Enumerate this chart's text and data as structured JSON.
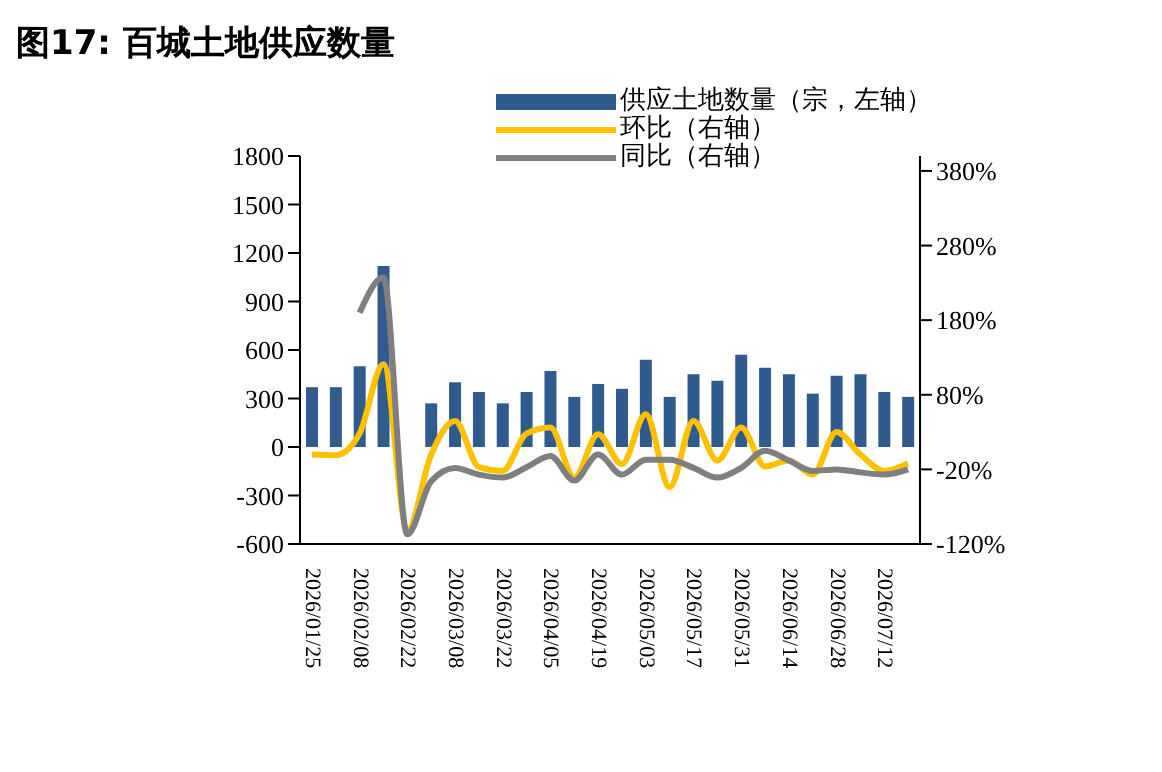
{
  "chart_data": {
    "type": "bar",
    "title": "图17: 百城土地供应数量",
    "categories": [
      "2026/01/25",
      null,
      "2026/02/08",
      null,
      "2026/02/22",
      null,
      "2026/03/08",
      null,
      "2026/03/22",
      null,
      "2026/04/05",
      null,
      "2026/04/19",
      null,
      "2026/05/03",
      null,
      "2026/05/17",
      null,
      "2026/05/31",
      null,
      "2026/06/14",
      null,
      "2026/06/28",
      null,
      "2026/07/12",
      null
    ],
    "series": [
      {
        "name": "供应土地数量（宗，左轴）",
        "color": "#2f5b8f",
        "values": [
          370,
          370,
          500,
          1120,
          null,
          270,
          400,
          340,
          270,
          340,
          470,
          310,
          390,
          360,
          540,
          310,
          450,
          410,
          570,
          490,
          450,
          330,
          440,
          450,
          340,
          310
        ]
      },
      {
        "name": "环比（右轴）",
        "type": "line",
        "axis": "y2",
        "color": "#ffc000",
        "values": [
          0,
          -1,
          28,
          121,
          -102,
          0,
          45,
          -17,
          -22,
          28,
          36,
          -31,
          27,
          -13,
          54,
          -44,
          45,
          -8,
          36,
          -16,
          -8,
          -27,
          30,
          0,
          -22,
          -12
        ]
      },
      {
        "name": "同比（右轴）",
        "type": "line",
        "axis": "y2",
        "color": "#7f7f7f",
        "values": [
          null,
          null,
          190,
          237,
          -107,
          -36,
          -18,
          -27,
          -31,
          -17,
          -2,
          -35,
          0,
          -27,
          -7,
          -7,
          -18,
          -31,
          -18,
          5,
          -8,
          -22,
          -20,
          -24,
          -27,
          -20
        ]
      }
    ],
    "ylim": [
      -600,
      1800
    ],
    "yticks": [
      -600,
      -300,
      0,
      300,
      600,
      900,
      1200,
      1500,
      1800
    ],
    "y2lim": [
      -120,
      400
    ],
    "y2ticks": [
      {
        "value": -120,
        "label": "-120%"
      },
      {
        "value": -20,
        "label": "-20%"
      },
      {
        "value": 80,
        "label": "80%"
      },
      {
        "value": 180,
        "label": "180%"
      },
      {
        "value": 280,
        "label": "280%"
      },
      {
        "value": 380,
        "label": "380%"
      }
    ],
    "legend": "top",
    "marker": "none",
    "line_style": "solid"
  }
}
